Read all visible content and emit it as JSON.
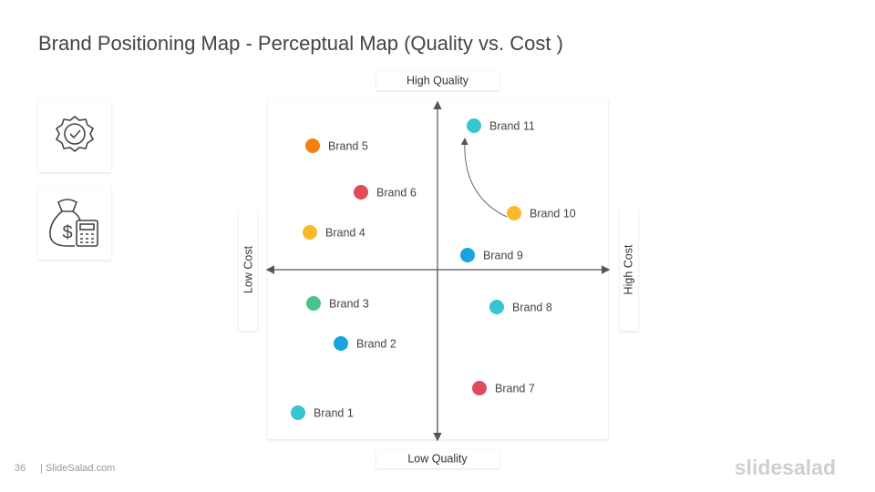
{
  "title": "Brand Positioning Map - Perceptual Map (Quality vs. Cost )",
  "axes": {
    "top": "High Quality",
    "bottom": "Low Quality",
    "left": "Low Cost",
    "right": "High Cost"
  },
  "brands": [
    {
      "label": "Brand  1",
      "color": "#36c5d2"
    },
    {
      "label": "Brand  2",
      "color": "#1aa3e0"
    },
    {
      "label": "Brand  3",
      "color": "#4cc38f"
    },
    {
      "label": "Brand  4",
      "color": "#f9b928"
    },
    {
      "label": "Brand  5",
      "color": "#f47f13"
    },
    {
      "label": "Brand  6",
      "color": "#e04a59"
    },
    {
      "label": "Brand  7",
      "color": "#e04a59"
    },
    {
      "label": "Brand  8",
      "color": "#36c5d2"
    },
    {
      "label": "Brand  9",
      "color": "#1aa3e0"
    },
    {
      "label": "Brand  10",
      "color": "#f9b928"
    },
    {
      "label": "Brand  11",
      "color": "#36c5d2"
    }
  ],
  "footer": {
    "page": "36",
    "site": "| SlideSalad.com",
    "logo": "slidesalad"
  }
}
